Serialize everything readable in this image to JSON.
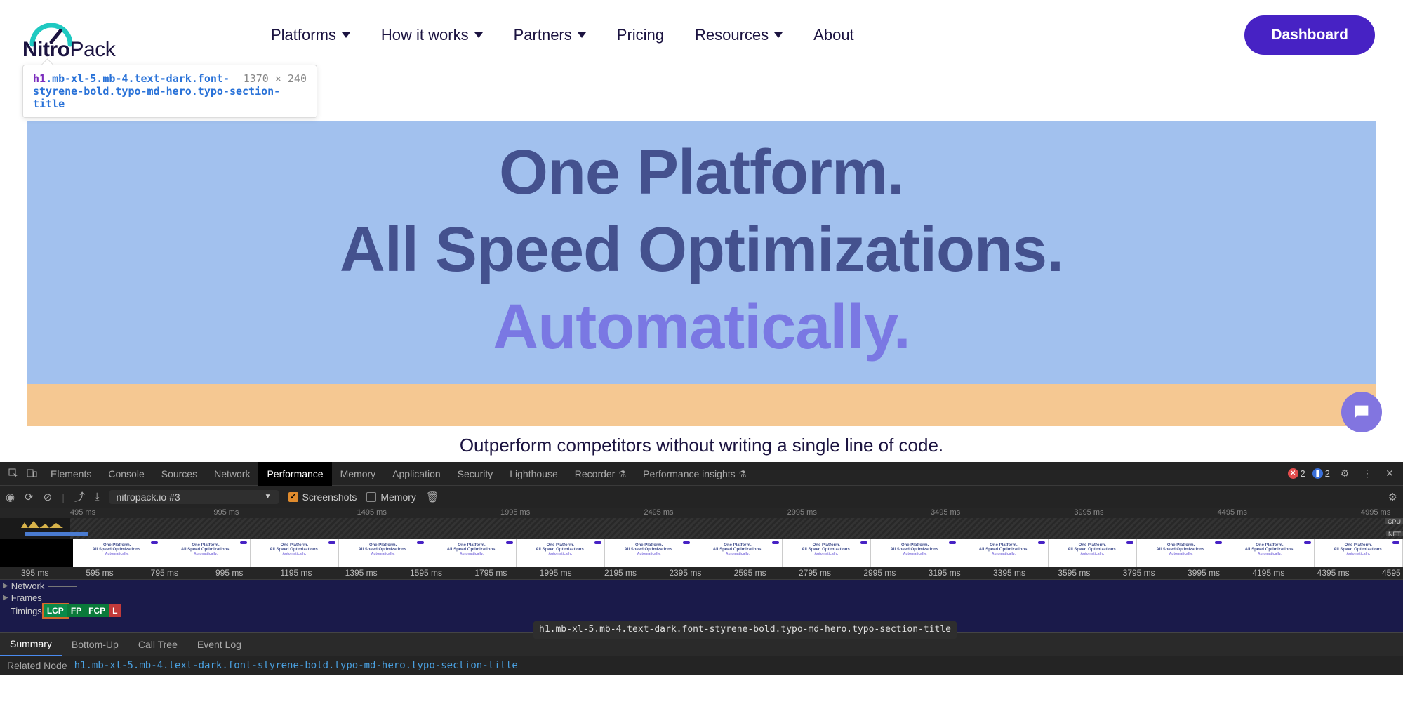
{
  "header": {
    "logo_text_a": "Nitro",
    "logo_text_b": "Pack",
    "logo_arc_color": "#1fc9c1",
    "nav": [
      "Platforms",
      "How it works",
      "Partners",
      "Pricing",
      "Resources",
      "About"
    ],
    "nav_has_chevron": [
      true,
      true,
      true,
      false,
      true,
      false
    ],
    "cta": "Dashboard",
    "cta_bg": "#4722c4"
  },
  "inspect_tooltip": {
    "tag": "h1",
    "classes": ".mb-xl-5.mb-4.text-dark.font-styrene-bold.typo-md-hero.typo-section-title",
    "dims": "1370 × 240"
  },
  "hero": {
    "line1": "One Platform.",
    "line2": "All Speed Optimizations.",
    "line3": "Automatically.",
    "overlay_color": "#a2c1ee",
    "margin_color": "#f5c892",
    "text_color": "#44518e",
    "accent_color": "#7a78e3",
    "subtitle": "Outperform competitors without writing a single line of code."
  },
  "devtools": {
    "tabs": [
      "Elements",
      "Console",
      "Sources",
      "Network",
      "Performance",
      "Memory",
      "Application",
      "Security",
      "Lighthouse",
      "Recorder",
      "Performance insights"
    ],
    "tabs_flask": [
      false,
      false,
      false,
      false,
      false,
      false,
      false,
      false,
      false,
      true,
      true
    ],
    "active_tab": "Performance",
    "errors": "2",
    "messages": "2",
    "toolbar_select": "nitropack.io #3",
    "check_screenshots": "Screenshots",
    "check_memory": "Memory",
    "overview_ticks": [
      "495 ms",
      "995 ms",
      "1495 ms",
      "1995 ms",
      "2495 ms",
      "2995 ms",
      "3495 ms",
      "3995 ms",
      "4495 ms",
      "4995 ms"
    ],
    "overview_badges": {
      "cpu": "CPU",
      "net": "NET"
    },
    "filmstrip_lines": {
      "l1": "One Platform.",
      "l2": "All Speed Optimizations.",
      "l3": "Automatically."
    },
    "filmstrip_count": 15,
    "flame_ticks": [
      "395 ms",
      "595 ms",
      "795 ms",
      "995 ms",
      "1195 ms",
      "1395 ms",
      "1595 ms",
      "1795 ms",
      "1995 ms",
      "2195 ms",
      "2395 ms",
      "2595 ms",
      "2795 ms",
      "2995 ms",
      "3195 ms",
      "3395 ms",
      "3595 ms",
      "3795 ms",
      "3995 ms",
      "4195 ms",
      "4395 ms",
      "4595"
    ],
    "tracks": {
      "network": "Network",
      "frames": "Frames",
      "timings": "Timings"
    },
    "timing_badges": [
      {
        "label": "LCP",
        "cls": "lcp"
      },
      {
        "label": "FP",
        "cls": "fp"
      },
      {
        "label": "FCP",
        "cls": "fcp"
      },
      {
        "label": "L",
        "cls": "l"
      }
    ],
    "bottom_tabs": [
      "Summary",
      "Bottom-Up",
      "Call Tree",
      "Event Log"
    ],
    "bottom_active": "Summary",
    "float_tooltip": "h1.mb-xl-5.mb-4.text-dark.font-styrene-bold.typo-md-hero.typo-section-title",
    "related_node_key": "Related Node",
    "related_node_val": "h1.mb-xl-5.mb-4.text-dark.font-styrene-bold.typo-md-hero.typo-section-title"
  }
}
